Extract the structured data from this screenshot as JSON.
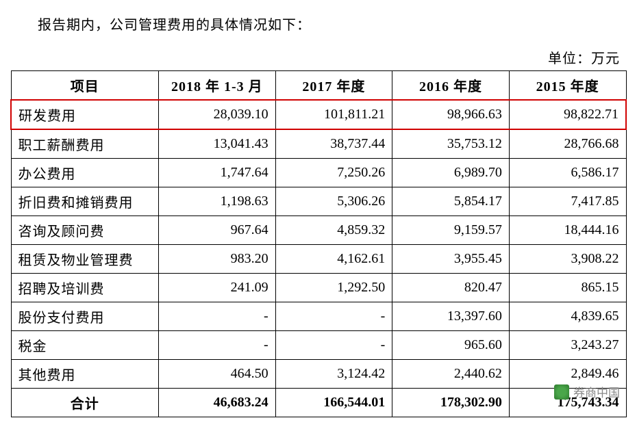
{
  "intro_text": "报告期内，公司管理费用的具体情况如下：",
  "unit_text": "单位：万元",
  "table": {
    "columns": [
      "项目",
      "2018 年 1-3 月",
      "2017 年度",
      "2016 年度",
      "2015 年度"
    ],
    "rows": [
      {
        "label": "研发费用",
        "values": [
          "28,039.10",
          "101,811.21",
          "98,966.63",
          "98,822.71"
        ],
        "highlight": true
      },
      {
        "label": "职工薪酬费用",
        "values": [
          "13,041.43",
          "38,737.44",
          "35,753.12",
          "28,766.68"
        ]
      },
      {
        "label": "办公费用",
        "values": [
          "1,747.64",
          "7,250.26",
          "6,989.70",
          "6,586.17"
        ]
      },
      {
        "label": "折旧费和摊销费用",
        "values": [
          "1,198.63",
          "5,306.26",
          "5,854.17",
          "7,417.85"
        ]
      },
      {
        "label": "咨询及顾问费",
        "values": [
          "967.64",
          "4,859.32",
          "9,159.57",
          "18,444.16"
        ]
      },
      {
        "label": "租赁及物业管理费",
        "values": [
          "983.20",
          "4,162.61",
          "3,955.45",
          "3,908.22"
        ]
      },
      {
        "label": "招聘及培训费",
        "values": [
          "241.09",
          "1,292.50",
          "820.47",
          "865.15"
        ]
      },
      {
        "label": "股份支付费用",
        "values": [
          "-",
          "-",
          "13,397.60",
          "4,839.65"
        ]
      },
      {
        "label": "税金",
        "values": [
          "-",
          "-",
          "965.60",
          "3,243.27"
        ]
      },
      {
        "label": "其他费用",
        "values": [
          "464.50",
          "3,124.42",
          "2,440.62",
          "2,849.46"
        ]
      }
    ],
    "total": {
      "label": "合计",
      "values": [
        "46,683.24",
        "166,544.01",
        "178,302.90",
        "175,743.34"
      ]
    }
  },
  "watermark_text": "券商中国",
  "colors": {
    "highlight_border": "#d00000",
    "text": "#000000",
    "background": "#ffffff",
    "watermark": "#888888"
  }
}
